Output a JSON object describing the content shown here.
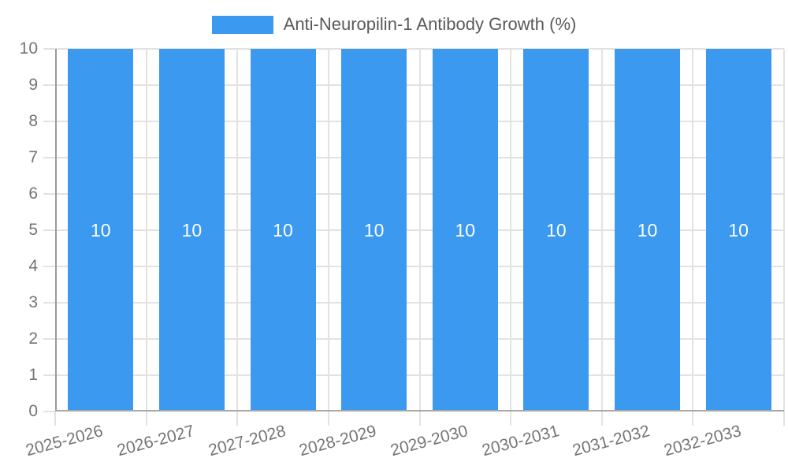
{
  "legend": {
    "label": "Anti-Neuropilin-1 Antibody Growth (%)"
  },
  "chart_data": {
    "type": "bar",
    "title": "Anti-Neuropilin-1 Antibody Growth (%)",
    "legend_position": "top",
    "grid": true,
    "categories": [
      "2025-2026",
      "2026-2027",
      "2027-2028",
      "2028-2029",
      "2029-2030",
      "2030-2031",
      "2031-2032",
      "2032-2033"
    ],
    "series": [
      {
        "name": "Anti-Neuropilin-1 Antibody Growth (%)",
        "values": [
          10,
          10,
          10,
          10,
          10,
          10,
          10,
          10
        ]
      }
    ],
    "bar_labels": [
      "10",
      "10",
      "10",
      "10",
      "10",
      "10",
      "10",
      "10"
    ],
    "xlabel": "",
    "ylabel": "",
    "ylim": [
      0,
      10
    ],
    "yticks": [
      0,
      1,
      2,
      3,
      4,
      5,
      6,
      7,
      8,
      9,
      10
    ],
    "x_label_rotation_deg": -15,
    "colors": {
      "bar": "#3b99f0",
      "bar_label": "#ffffff",
      "gridline": "#e2e2e2",
      "axis_line": "#9a9a9a",
      "tick_label": "#757575",
      "legend_text": "#595959"
    }
  }
}
